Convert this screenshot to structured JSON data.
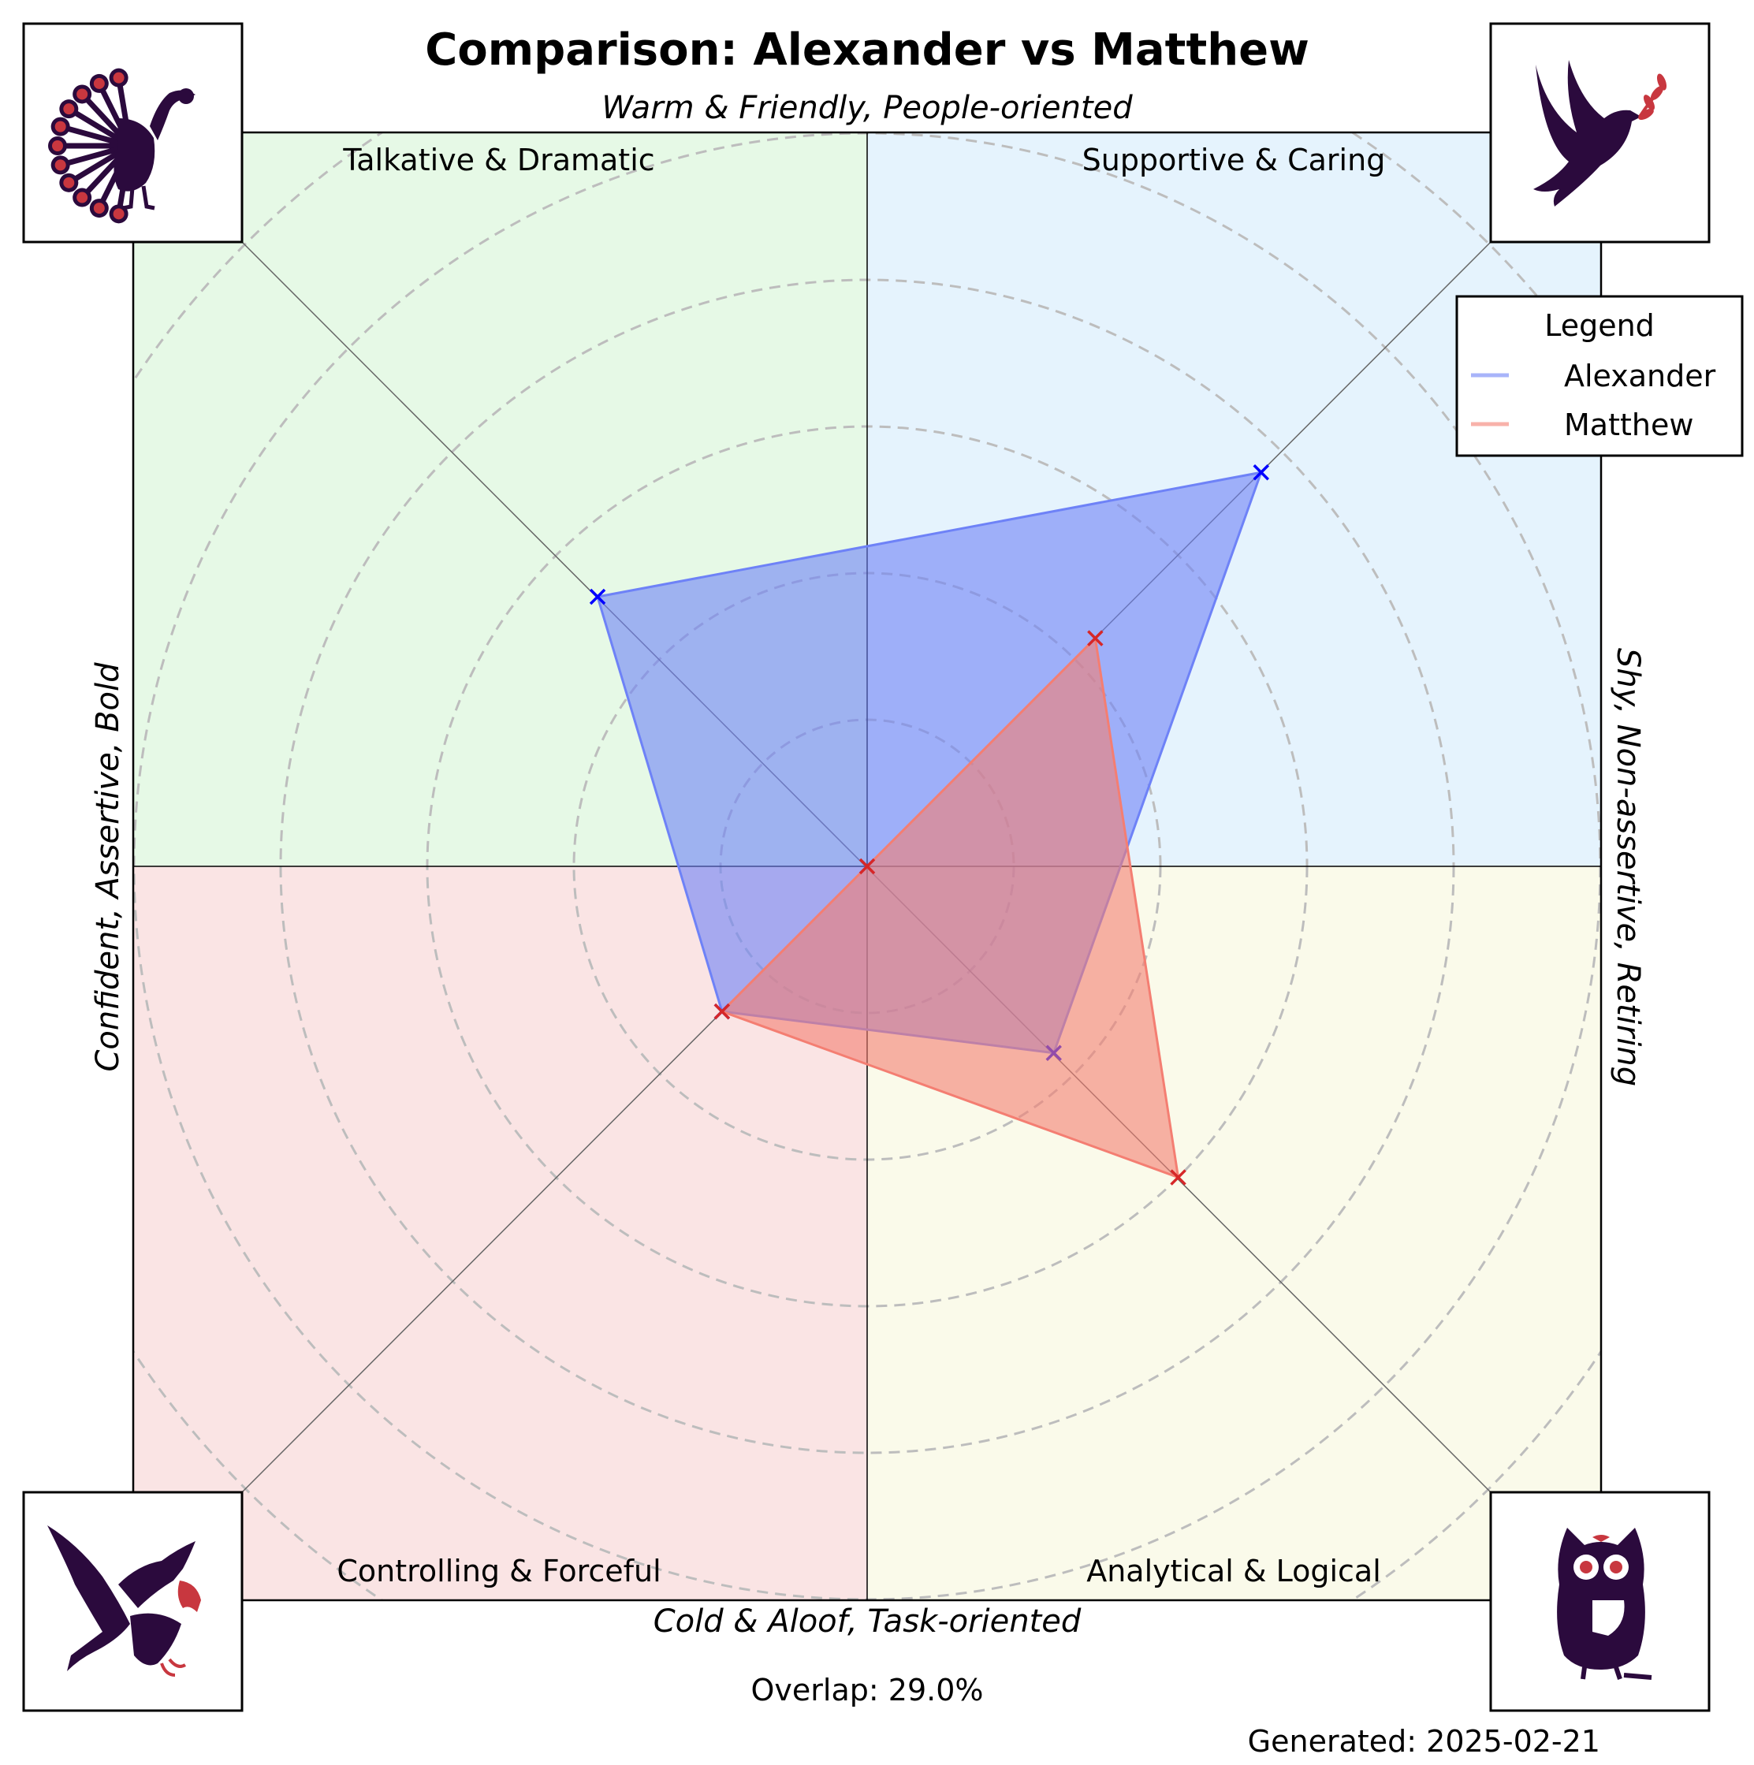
{
  "chart_data": {
    "type": "radar",
    "title": "Comparison: Alexander vs Matthew",
    "axis_labels": {
      "top": "Warm & Friendly, People-oriented",
      "bottom": "Cold & Aloof, Task-oriented",
      "left": "Confident, Assertive, Bold",
      "right": "Shy, Non-assertive, Retiring"
    },
    "quadrants": [
      {
        "name": "Talkative & Dramatic",
        "position": "top-left",
        "color": "#e6f9e6",
        "icon": "peacock-icon"
      },
      {
        "name": "Supportive & Caring",
        "position": "top-right",
        "color": "#e5f3fd",
        "icon": "dove-icon"
      },
      {
        "name": "Controlling & Forceful",
        "position": "bottom-left",
        "color": "#fae4e4",
        "icon": "eagle-icon"
      },
      {
        "name": "Analytical & Logical",
        "position": "bottom-right",
        "color": "#fafaea",
        "icon": "owl-icon"
      }
    ],
    "directions": [
      "top-left",
      "top-right",
      "bottom-right",
      "bottom-left"
    ],
    "rlim": [
      0,
      5
    ],
    "rings": [
      1,
      2,
      3,
      4,
      5,
      6
    ],
    "series": [
      {
        "name": "Alexander",
        "color": "#0000ff",
        "fill": "#6e82f7",
        "values": [
          2.6,
          3.8,
          1.8,
          1.4
        ]
      },
      {
        "name": "Matthew",
        "color": "#d62728",
        "fill": "#f47e72",
        "values": [
          0,
          2.2,
          3.0,
          1.4
        ]
      }
    ],
    "legend": {
      "title": "Legend",
      "placement": "top-right"
    },
    "grid": true,
    "overlap_text": "Overlap: 29.0%",
    "generated_text": "Generated: 2025-02-21"
  },
  "colors": {
    "icon_dark": "#2b0a3d",
    "icon_accent": "#c8373f"
  }
}
